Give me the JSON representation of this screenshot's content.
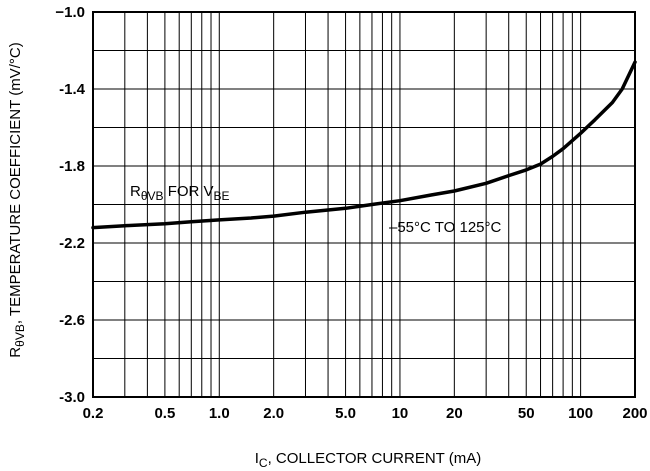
{
  "chart_data": {
    "type": "line",
    "title": "",
    "x_scale": "log",
    "xlim": [
      0.2,
      200
    ],
    "ylim": [
      -3.0,
      -1.0
    ],
    "grid": true,
    "xlabel": {
      "main": "I",
      "sub": "C",
      "rest": ", COLLECTOR CURRENT (mA)"
    },
    "ylabel": {
      "main": "R",
      "sub": "θVB",
      "rest": ", TEMPERATURE COEFFICIENT (mV/°C)"
    },
    "x_ticks": [
      {
        "value": 0.2,
        "label": "0.2"
      },
      {
        "value": 0.5,
        "label": "0.5"
      },
      {
        "value": 1,
        "label": "1.0"
      },
      {
        "value": 2,
        "label": "2.0"
      },
      {
        "value": 5,
        "label": "5.0"
      },
      {
        "value": 10,
        "label": "10"
      },
      {
        "value": 20,
        "label": "20"
      },
      {
        "value": 50,
        "label": "50"
      },
      {
        "value": 100,
        "label": "100"
      },
      {
        "value": 200,
        "label": "200"
      }
    ],
    "y_ticks": [
      {
        "value": -1.0,
        "label": "−1.0"
      },
      {
        "value": -1.4,
        "label": "-1.4"
      },
      {
        "value": -1.8,
        "label": "-1.8"
      },
      {
        "value": -2.2,
        "label": "-2.2"
      },
      {
        "value": -2.6,
        "label": "-2.6"
      },
      {
        "value": -3.0,
        "label": "-3.0"
      }
    ],
    "series": [
      {
        "x": [
          0.2,
          0.3,
          0.5,
          0.7,
          1,
          1.5,
          2,
          3,
          5,
          7,
          10,
          15,
          20,
          30,
          40,
          50,
          60,
          70,
          80,
          100,
          120,
          150,
          170,
          200
        ],
        "y": [
          -2.12,
          -2.11,
          -2.1,
          -2.09,
          -2.08,
          -2.07,
          -2.06,
          -2.04,
          -2.02,
          -2.0,
          -1.98,
          -1.95,
          -1.93,
          -1.89,
          -1.85,
          -1.82,
          -1.79,
          -1.75,
          -1.71,
          -1.63,
          -1.56,
          -1.47,
          -1.4,
          -1.26
        ]
      }
    ],
    "annotations": [
      {
        "id": "curve-label",
        "main": "R",
        "sub": "θVB",
        "mid": " FOR V",
        "sub2": "BE"
      },
      {
        "id": "temp-range",
        "text": "–55°C TO 125°C"
      }
    ],
    "colors": {
      "line": "#000000",
      "grid": "#000000",
      "background": "#ffffff"
    }
  }
}
